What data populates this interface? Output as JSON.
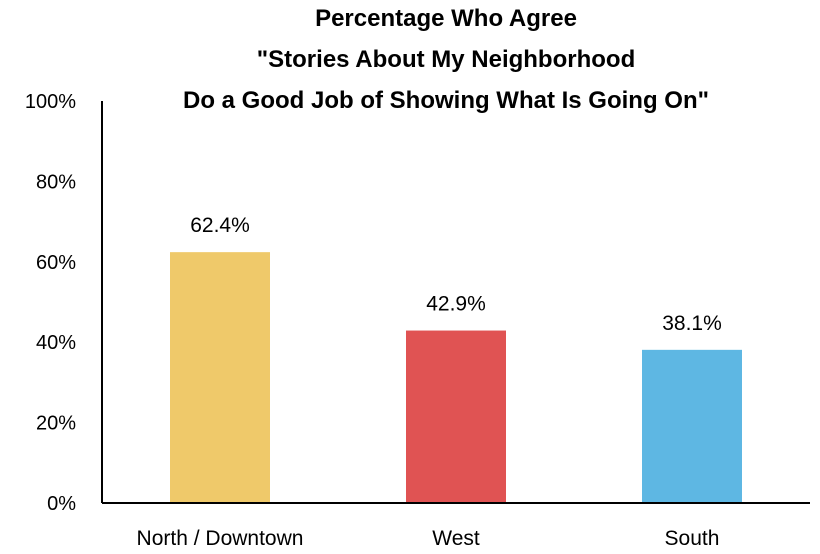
{
  "chart_data": {
    "type": "bar",
    "title_lines": [
      "Percentage Who Agree",
      "\"Stories About My Neighborhood",
      "Do a Good Job of Showing What Is Going On\""
    ],
    "categories": [
      "North / Downtown",
      "West",
      "South"
    ],
    "values": [
      62.4,
      42.9,
      38.1
    ],
    "data_labels": [
      "62.4%",
      "42.9%",
      "38.1%"
    ],
    "colors": [
      "#EFC96A",
      "#E05353",
      "#5EB7E3"
    ],
    "yticks": [
      "0%",
      "20%",
      "40%",
      "60%",
      "80%",
      "100%"
    ],
    "ylim": [
      0,
      100
    ],
    "grid": false
  }
}
